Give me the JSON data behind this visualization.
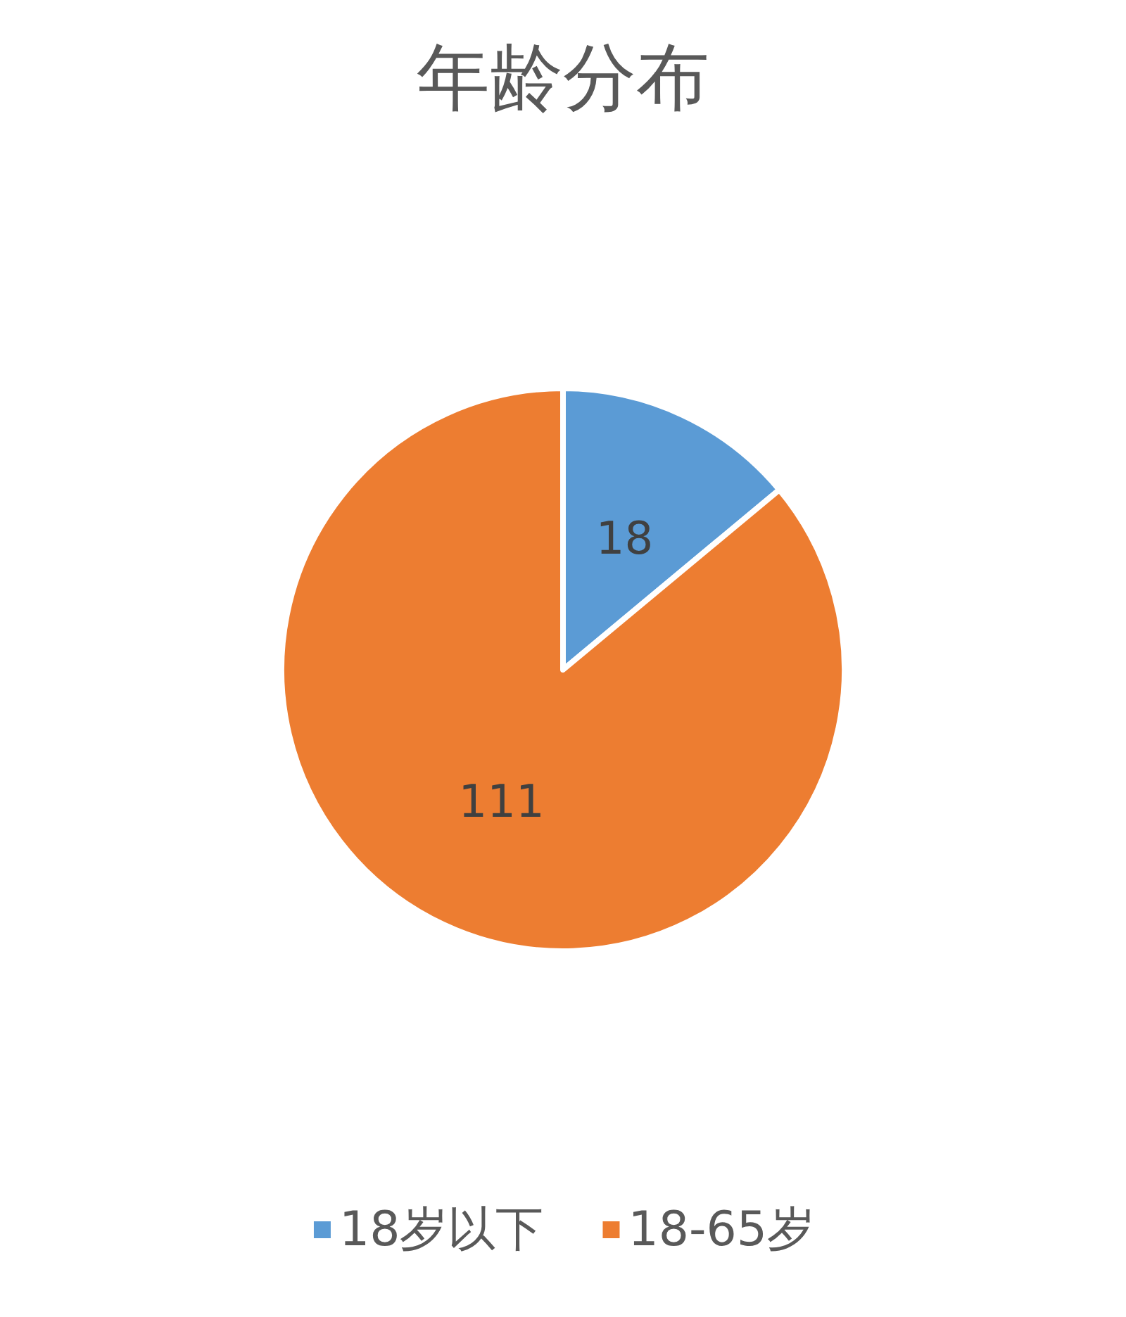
{
  "chart_data": {
    "type": "pie",
    "title": "年龄分布",
    "categories": [
      "18岁以下",
      "18-65岁"
    ],
    "values": [
      18,
      111
    ],
    "colors": [
      "#5b9bd5",
      "#ed7d31"
    ],
    "data_labels": true,
    "legend": "bottom"
  }
}
